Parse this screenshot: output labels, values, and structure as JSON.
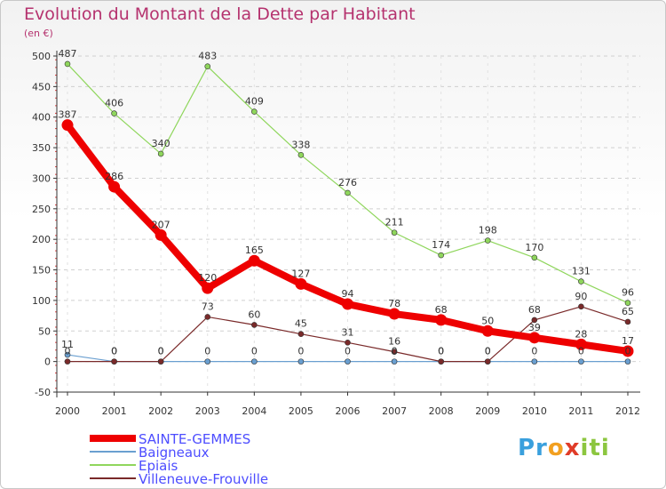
{
  "title": "Evolution du Montant de la Dette par Habitant",
  "unit_label": "(en €)",
  "brand": "Proxiti",
  "colors": {
    "title": "#b5326e",
    "axis": "#333333",
    "grid": "#d0d0d0",
    "legend_text": "#4d4dff"
  },
  "chart_data": {
    "type": "line",
    "title": "Evolution du Montant de la Dette par Habitant",
    "ylabel": "(en €)",
    "xlabel": "",
    "x": [
      "2000",
      "2001",
      "2002",
      "2003",
      "2004",
      "2005",
      "2006",
      "2007",
      "2008",
      "2009",
      "2010",
      "2011",
      "2012"
    ],
    "ylim": [
      -50,
      500
    ],
    "yticks": [
      -50,
      0,
      50,
      100,
      150,
      200,
      250,
      300,
      350,
      400,
      450,
      500
    ],
    "grid": "horizontal-dashed",
    "legend_position": "bottom-left",
    "series": [
      {
        "name": "Baigneaux",
        "color": "#6a9fd0",
        "values": [
          11,
          0,
          0,
          0,
          0,
          0,
          0,
          0,
          0,
          0,
          0,
          0,
          0
        ],
        "labels": [
          "11",
          "0",
          "0",
          "0",
          "0",
          "0",
          "0",
          "0",
          "0",
          "0",
          "0",
          "0",
          "0"
        ]
      },
      {
        "name": "Epiais",
        "color": "#8fd65c",
        "values": [
          487,
          406,
          340,
          483,
          409,
          338,
          276,
          211,
          174,
          198,
          170,
          131,
          96
        ],
        "labels": [
          "487",
          "406",
          "340",
          "483",
          "409",
          "338",
          "276",
          "211",
          "174",
          "198",
          "170",
          "131",
          "96"
        ]
      },
      {
        "name": "Villeneuve-Frouville",
        "color": "#7a2a2a",
        "values": [
          0,
          0,
          0,
          73,
          60,
          45,
          31,
          16,
          0,
          0,
          68,
          90,
          65
        ],
        "labels": [
          "0",
          "0",
          "0",
          "73",
          "60",
          "45",
          "31",
          "16",
          "0",
          "0",
          "68",
          "90",
          "65"
        ]
      },
      {
        "name": "SAINTE-GEMMES",
        "color": "#ee0000",
        "values": [
          387,
          286,
          207,
          120,
          165,
          127,
          94,
          78,
          68,
          50,
          39,
          28,
          17
        ],
        "labels": [
          "387",
          "286",
          "207",
          "120",
          "165",
          "127",
          "94",
          "78",
          "68",
          "50",
          "39",
          "28",
          "17"
        ]
      }
    ]
  },
  "legend": [
    {
      "label": "SAINTE-GEMMES",
      "color": "#ee0000",
      "thickness": 8
    },
    {
      "label": "Baigneaux",
      "color": "#6a9fd0",
      "thickness": 2
    },
    {
      "label": "Epiais",
      "color": "#8fd65c",
      "thickness": 2
    },
    {
      "label": "Villeneuve-Frouville",
      "color": "#7a2a2a",
      "thickness": 2
    }
  ]
}
